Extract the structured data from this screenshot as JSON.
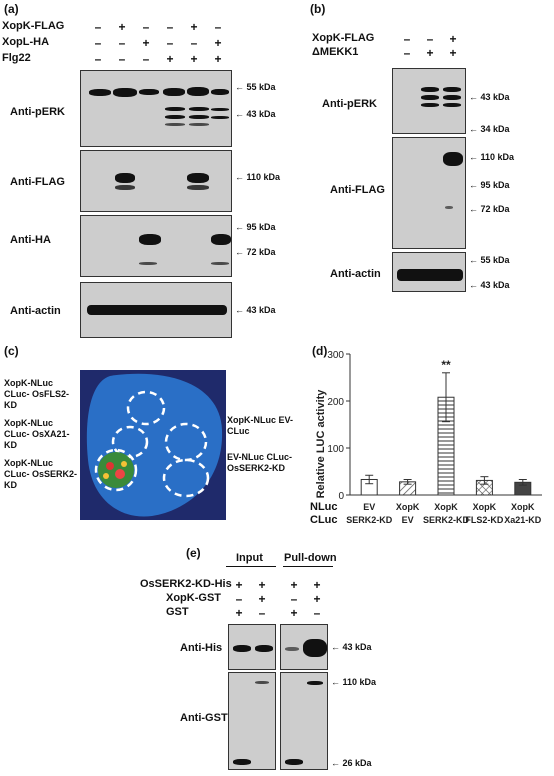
{
  "panel_a": {
    "label": "(a)",
    "rows": [
      {
        "name": "XopK-FLAG",
        "signs": [
          "–",
          "+",
          "–",
          "–",
          "+",
          "–"
        ]
      },
      {
        "name": "XopL-HA",
        "signs": [
          "–",
          "–",
          "+",
          "–",
          "–",
          "+"
        ]
      },
      {
        "name": "Flg22",
        "signs": [
          "–",
          "–",
          "–",
          "+",
          "+",
          "+"
        ]
      }
    ],
    "blots": [
      {
        "label": "Anti-pERK",
        "markers": [
          "55 kDa",
          "43 kDa"
        ]
      },
      {
        "label": "Anti-FLAG",
        "markers": [
          "110 kDa"
        ]
      },
      {
        "label": "Anti-HA",
        "markers": [
          "95 kDa",
          "72 kDa"
        ]
      },
      {
        "label": "Anti-actin",
        "markers": [
          "43 kDa"
        ]
      }
    ]
  },
  "panel_b": {
    "label": "(b)",
    "rows": [
      {
        "name": "XopK-FLAG",
        "signs": [
          "–",
          "–",
          "+"
        ]
      },
      {
        "name": "ΔMEKK1",
        "signs": [
          "–",
          "+",
          "+"
        ]
      }
    ],
    "blots": [
      {
        "label": "Anti-pERK",
        "markers": [
          "43 kDa",
          "34 kDa"
        ]
      },
      {
        "label": "Anti-FLAG",
        "markers": [
          "110 kDa",
          "95 kDa",
          "72 kDa"
        ]
      },
      {
        "label": "Anti-actin",
        "markers": [
          "55 kDa",
          "43 kDa"
        ]
      }
    ]
  },
  "panel_c": {
    "label": "(c)",
    "left_labels": [
      "XopK-NLuc CLuc- OsFLS2-KD",
      "XopK-NLuc CLuc- OsXA21-KD",
      "XopK-NLuc CLuc- OsSERK2-KD"
    ],
    "right_labels": [
      "XopK-NLuc EV-CLuc",
      "EV-NLuc CLuc- OsSERK2-KD"
    ]
  },
  "panel_d": {
    "label": "(d)",
    "row_labels": [
      "NLuc",
      "CLuc"
    ],
    "significance": "**"
  },
  "chart_data": {
    "type": "bar",
    "ylabel": "Relative LUC activity",
    "ylim": [
      0,
      300
    ],
    "yticks": [
      0,
      100,
      200,
      300
    ],
    "groups": [
      {
        "nluc": "EV",
        "cluc": "SERK2-KD",
        "value": 33,
        "error": 9,
        "pattern": "white"
      },
      {
        "nluc": "XopK",
        "cluc": "EV",
        "value": 28,
        "error": 5,
        "pattern": "diagonal"
      },
      {
        "nluc": "XopK",
        "cluc": "SERK2-KD",
        "value": 208,
        "error": 52,
        "pattern": "horizontal"
      },
      {
        "nluc": "XopK",
        "cluc": "FLS2-KD",
        "value": 31,
        "error": 8,
        "pattern": "crosshatch"
      },
      {
        "nluc": "XopK",
        "cluc": "Xa21-KD",
        "value": 27,
        "error": 6,
        "pattern": "dark"
      }
    ]
  },
  "panel_e": {
    "label": "(e)",
    "col_headers": [
      "Input",
      "Pull-down"
    ],
    "rows": [
      {
        "name": "OsSERK2-KD-His",
        "signs": [
          "+",
          "+",
          "+",
          "+"
        ]
      },
      {
        "name": "XopK-GST",
        "signs": [
          "–",
          "+",
          "–",
          "+"
        ]
      },
      {
        "name": "GST",
        "signs": [
          "+",
          "–",
          "+",
          "–"
        ]
      }
    ],
    "blots": [
      {
        "label": "Anti-His",
        "markers": [
          "43 kDa"
        ]
      },
      {
        "label": "Anti-GST",
        "markers": [
          "110 kDa",
          "26 kDa"
        ]
      }
    ]
  }
}
